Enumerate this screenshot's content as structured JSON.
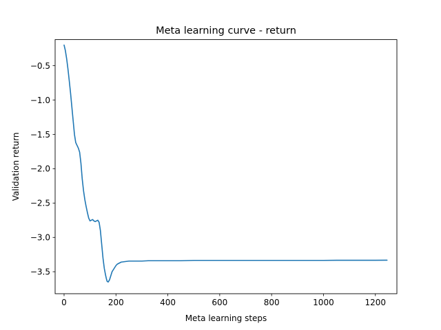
{
  "chart_data": {
    "type": "line",
    "title": "Meta learning curve - return",
    "xlabel": "Meta learning steps",
    "ylabel": "Validation return",
    "xlim": [
      -34.5,
      1283
    ],
    "ylim": [
      -3.82,
      -0.12
    ],
    "xticks": [
      0,
      200,
      400,
      600,
      800,
      1000,
      1200
    ],
    "xtick_labels": [
      "0",
      "200",
      "400",
      "600",
      "800",
      "1000",
      "1200"
    ],
    "yticks": [
      -3.5,
      -3.0,
      -2.5,
      -2.0,
      -1.5,
      -1.0,
      -0.5
    ],
    "ytick_labels": [
      "−3.5",
      "−3.0",
      "−2.5",
      "−2.0",
      "−1.5",
      "−1.0",
      "−0.5"
    ],
    "grid": false,
    "series": [
      {
        "name": "Validation return",
        "color": "#1f77b4",
        "x": [
          0,
          5,
          10,
          15,
          20,
          25,
          30,
          35,
          40,
          45,
          50,
          55,
          60,
          65,
          70,
          75,
          80,
          85,
          90,
          95,
          100,
          105,
          110,
          115,
          120,
          125,
          130,
          135,
          140,
          145,
          150,
          155,
          160,
          163,
          166,
          170,
          175,
          180,
          185,
          190,
          195,
          200,
          205,
          210,
          215,
          220,
          230,
          240,
          250,
          260,
          270,
          280,
          290,
          300,
          325,
          350,
          400,
          450,
          500,
          550,
          600,
          650,
          700,
          750,
          800,
          850,
          900,
          950,
          1000,
          1050,
          1100,
          1150,
          1200,
          1245
        ],
        "y": [
          -0.2,
          -0.28,
          -0.4,
          -0.55,
          -0.72,
          -0.9,
          -1.1,
          -1.3,
          -1.5,
          -1.62,
          -1.66,
          -1.7,
          -1.76,
          -1.92,
          -2.15,
          -2.32,
          -2.45,
          -2.55,
          -2.64,
          -2.72,
          -2.76,
          -2.75,
          -2.74,
          -2.76,
          -2.77,
          -2.76,
          -2.75,
          -2.78,
          -2.9,
          -3.1,
          -3.3,
          -3.45,
          -3.55,
          -3.6,
          -3.64,
          -3.65,
          -3.62,
          -3.56,
          -3.5,
          -3.47,
          -3.44,
          -3.41,
          -3.39,
          -3.38,
          -3.37,
          -3.36,
          -3.355,
          -3.35,
          -3.345,
          -3.345,
          -3.345,
          -3.345,
          -3.345,
          -3.345,
          -3.34,
          -3.34,
          -3.34,
          -3.34,
          -3.335,
          -3.335,
          -3.335,
          -3.335,
          -3.335,
          -3.335,
          -3.335,
          -3.335,
          -3.335,
          -3.335,
          -3.335,
          -3.333,
          -3.333,
          -3.333,
          -3.333,
          -3.332
        ]
      }
    ]
  }
}
